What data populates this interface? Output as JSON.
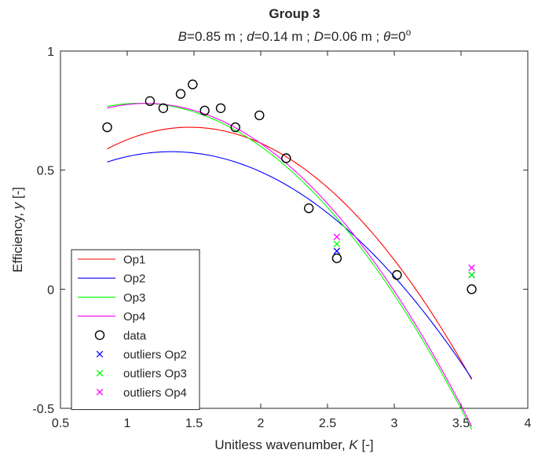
{
  "chart_data": {
    "type": "scatter",
    "title": "Group 3",
    "subtitle": {
      "parts": [
        {
          "text": "B",
          "italic": true
        },
        {
          "text": "=0.85 m ; ",
          "italic": false
        },
        {
          "text": "d",
          "italic": true
        },
        {
          "text": "=0.14 m ; ",
          "italic": false
        },
        {
          "text": "D",
          "italic": true
        },
        {
          "text": "=0.06 m ; ",
          "italic": false
        },
        {
          "text": "θ",
          "italic": true
        },
        {
          "text": "=0",
          "italic": false
        },
        {
          "text": "o",
          "italic": false,
          "sup": true
        }
      ]
    },
    "xlabel": {
      "prefix": "Unitless wavenumber, ",
      "var": "K",
      "suffix": " [-]"
    },
    "ylabel": {
      "prefix": "Efficiency, ",
      "var": "y",
      "suffix": " [-]"
    },
    "xlim": [
      0.5,
      4
    ],
    "ylim": [
      -0.5,
      1
    ],
    "xticks": [
      0.5,
      1,
      1.5,
      2,
      2.5,
      3,
      3.5,
      4
    ],
    "xtick_labels": [
      "0.5",
      "1",
      "1.5",
      "2",
      "2.5",
      "3",
      "3.5",
      "4"
    ],
    "yticks": [
      -0.5,
      0,
      0.5,
      1
    ],
    "ytick_labels": [
      "-0.5",
      "0",
      "0.5",
      "1"
    ],
    "grid": false,
    "legend_position": "bottom-left",
    "series": [
      {
        "name": "Op1",
        "kind": "line",
        "color": "#ff0000",
        "x_range": [
          0.85,
          3.58
        ],
        "poly": [
          -0.2375,
          0.6975,
          0.168
        ]
      },
      {
        "name": "Op2",
        "kind": "line",
        "color": "#0000ff",
        "x_range": [
          0.85,
          3.58
        ],
        "poly": [
          -0.188,
          0.5,
          0.245
        ]
      },
      {
        "name": "Op3",
        "kind": "line",
        "color": "#00ff00",
        "x_range": [
          0.85,
          3.58
        ],
        "poly": [
          -0.222,
          0.4868,
          0.514
        ]
      },
      {
        "name": "Op4",
        "kind": "line",
        "color": "#ff00ff",
        "x_range": [
          0.85,
          3.58
        ],
        "poly": [
          -0.228,
          0.5205,
          0.483
        ]
      },
      {
        "name": "data",
        "kind": "marker",
        "marker": "circle",
        "color": "#000000",
        "x": [
          0.85,
          1.17,
          1.27,
          1.4,
          1.49,
          1.58,
          1.7,
          1.81,
          1.99,
          2.19,
          2.36,
          2.57,
          3.02,
          3.58
        ],
        "y": [
          0.68,
          0.79,
          0.76,
          0.82,
          0.86,
          0.75,
          0.76,
          0.68,
          0.73,
          0.55,
          0.34,
          0.13,
          0.06,
          0.0
        ]
      },
      {
        "name": "outliers Op2",
        "kind": "marker",
        "marker": "x",
        "color": "#0000ff",
        "x": [
          2.57,
          3.58
        ],
        "y": [
          0.16,
          0.06
        ]
      },
      {
        "name": "outliers Op3",
        "kind": "marker",
        "marker": "x",
        "color": "#00ff00",
        "x": [
          2.57,
          3.58
        ],
        "y": [
          0.19,
          0.06
        ]
      },
      {
        "name": "outliers Op4",
        "kind": "marker",
        "marker": "x",
        "color": "#ff00ff",
        "x": [
          2.57,
          3.58
        ],
        "y": [
          0.22,
          0.09
        ]
      }
    ]
  }
}
